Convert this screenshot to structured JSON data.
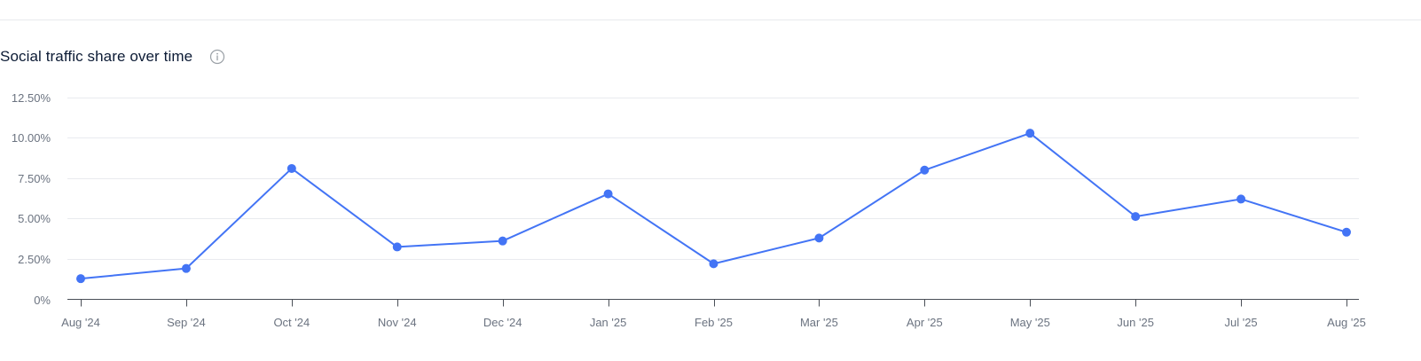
{
  "header": {
    "title": "Social traffic share over time",
    "info_icon": "info-icon"
  },
  "colors": {
    "line": "#4374f5",
    "point": "#4374f5",
    "grid": "#e9ebef",
    "axis": "#4a4f57",
    "tick_text": "#6b7380",
    "title_text": "#0c1b35"
  },
  "chart_data": {
    "type": "line",
    "title": "Social traffic share over time",
    "xlabel": "",
    "ylabel": "",
    "categories": [
      "Aug '24",
      "Sep '24",
      "Oct '24",
      "Nov '24",
      "Dec '24",
      "Jan '25",
      "Feb '25",
      "Mar '25",
      "Apr '25",
      "May '25",
      "Jun '25",
      "Jul '25",
      "Aug '25"
    ],
    "series": [
      {
        "values": [
          1.28,
          1.91,
          8.09,
          3.24,
          3.61,
          6.52,
          2.2,
          3.79,
          7.99,
          10.27,
          5.12,
          6.2,
          4.15
        ]
      }
    ],
    "y_ticks": [
      0,
      2.5,
      5,
      7.5,
      10,
      12.5
    ],
    "y_tick_labels": [
      "0%",
      "2.50%",
      "5.00%",
      "7.50%",
      "10.00%",
      "12.50%"
    ],
    "ylim": [
      0,
      12.5
    ],
    "grid": true,
    "legend": "none"
  }
}
